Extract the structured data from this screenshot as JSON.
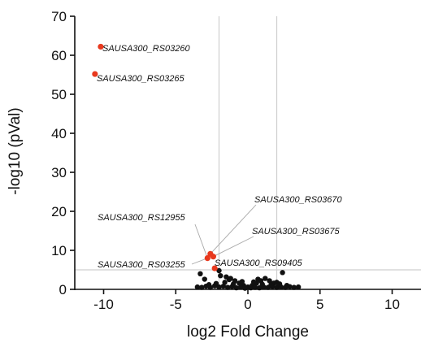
{
  "chart_data": {
    "type": "scatter",
    "xlabel": "log2 Fold Change",
    "ylabel": "-log10 (pVal)",
    "xlim": [
      -12,
      12
    ],
    "ylim": [
      0,
      70
    ],
    "x_ticks": [
      -10,
      -5,
      0,
      5,
      10
    ],
    "y_ticks": [
      0,
      10,
      20,
      30,
      40,
      50,
      60,
      70
    ],
    "thresholds": {
      "x": [
        -2,
        2
      ],
      "y": 5
    },
    "colors": {
      "significant": "#e8391e",
      "not_significant": "#111111",
      "threshold": "#cfcfcf"
    },
    "significant_points": [
      {
        "x": -10.2,
        "y": 62.2
      },
      {
        "x": -10.6,
        "y": 55.2
      },
      {
        "x": -2.6,
        "y": 9.1
      },
      {
        "x": -2.4,
        "y": 8.4
      },
      {
        "x": -2.8,
        "y": 8.0
      },
      {
        "x": -2.3,
        "y": 5.4
      }
    ],
    "other_points": [
      {
        "x": -3.3,
        "y": 4.0
      },
      {
        "x": -3.0,
        "y": 2.6
      },
      {
        "x": -2.0,
        "y": 4.8
      },
      {
        "x": -1.9,
        "y": 3.5
      },
      {
        "x": -1.5,
        "y": 3.2
      },
      {
        "x": -1.2,
        "y": 2.8
      },
      {
        "x": -0.9,
        "y": 2.2
      },
      {
        "x": -0.6,
        "y": 1.6
      },
      {
        "x": -0.3,
        "y": 1.0
      },
      {
        "x": 0.0,
        "y": 0.6
      },
      {
        "x": 0.3,
        "y": 1.0
      },
      {
        "x": 0.6,
        "y": 1.6
      },
      {
        "x": 0.9,
        "y": 2.2
      },
      {
        "x": 1.2,
        "y": 2.8
      },
      {
        "x": 1.5,
        "y": 2.2
      },
      {
        "x": 1.8,
        "y": 1.6
      },
      {
        "x": 2.4,
        "y": 4.3
      },
      {
        "x": 2.0,
        "y": 1.8
      },
      {
        "x": -3.5,
        "y": 0.6
      },
      {
        "x": -3.2,
        "y": 0.5
      },
      {
        "x": -2.9,
        "y": 0.8
      },
      {
        "x": -2.6,
        "y": 0.5
      },
      {
        "x": -2.3,
        "y": 0.9
      },
      {
        "x": -2.0,
        "y": 0.6
      },
      {
        "x": -1.7,
        "y": 0.8
      },
      {
        "x": -1.4,
        "y": 0.5
      },
      {
        "x": -1.1,
        "y": 0.7
      },
      {
        "x": -0.8,
        "y": 0.4
      },
      {
        "x": -0.5,
        "y": 0.6
      },
      {
        "x": -0.2,
        "y": 0.3
      },
      {
        "x": 0.2,
        "y": 0.4
      },
      {
        "x": 0.5,
        "y": 0.5
      },
      {
        "x": 0.8,
        "y": 0.4
      },
      {
        "x": 1.1,
        "y": 0.6
      },
      {
        "x": 1.4,
        "y": 0.5
      },
      {
        "x": 1.7,
        "y": 0.7
      },
      {
        "x": 2.0,
        "y": 0.5
      },
      {
        "x": 2.3,
        "y": 0.6
      },
      {
        "x": 2.6,
        "y": 0.5
      },
      {
        "x": 2.9,
        "y": 0.7
      },
      {
        "x": 3.2,
        "y": 0.5
      },
      {
        "x": 3.5,
        "y": 0.6
      },
      {
        "x": -1.6,
        "y": 1.8
      },
      {
        "x": -1.0,
        "y": 1.4
      },
      {
        "x": 1.0,
        "y": 1.3
      },
      {
        "x": 1.6,
        "y": 1.1
      },
      {
        "x": -2.2,
        "y": 1.5
      },
      {
        "x": 2.2,
        "y": 1.4
      },
      {
        "x": -0.4,
        "y": 2.0
      },
      {
        "x": 0.4,
        "y": 1.9
      },
      {
        "x": -1.3,
        "y": 2.5
      },
      {
        "x": 0.7,
        "y": 2.6
      },
      {
        "x": -2.7,
        "y": 1.2
      },
      {
        "x": 2.7,
        "y": 1.0
      }
    ],
    "annotations": [
      {
        "text": "SAUSA300_RS03260",
        "x": -10.2,
        "y": 62.2
      },
      {
        "text": "SAUSA300_RS03265",
        "x": -10.6,
        "y": 55.2
      },
      {
        "text": "SAUSA300_RS03670",
        "x": -2.6,
        "y": 9.1
      },
      {
        "text": "SAUSA300_RS12955",
        "x": -2.8,
        "y": 8.0
      },
      {
        "text": "SAUSA300_RS03675",
        "x": -2.4,
        "y": 8.4
      },
      {
        "text": "SAUSA300_RS03255",
        "x": -2.8,
        "y": 8.0
      },
      {
        "text": "SAUSA300_RS09405",
        "x": -2.3,
        "y": 5.4
      }
    ]
  }
}
